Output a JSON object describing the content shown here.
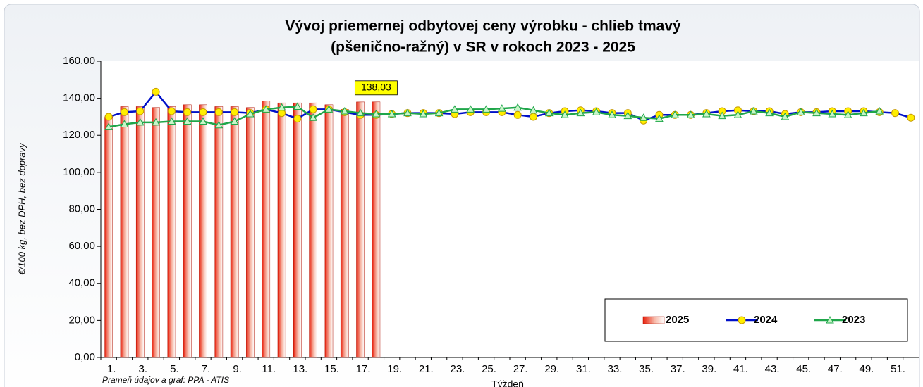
{
  "chart_data": {
    "type": "bar_line",
    "title": [
      "Vývoj priemernej odbytovej ceny výrobku - chlieb tmavý",
      "(pšenično-ražný) v SR v rokoch 2023 - 2025"
    ],
    "y_label": "€/100 kg, bez DPH, bez dopravy",
    "x_label": "Týždeň",
    "source": "Prameň údajov a graf: PPA - ATIS",
    "categories": [
      "1.",
      null,
      "3.",
      null,
      "5.",
      null,
      "7.",
      null,
      "9.",
      null,
      "11.",
      null,
      "13.",
      null,
      "15.",
      null,
      "17.",
      null,
      "19.",
      null,
      "21.",
      null,
      "23.",
      null,
      "25.",
      null,
      "27.",
      null,
      "29.",
      null,
      "31.",
      null,
      "33.",
      null,
      "35.",
      null,
      "37.",
      null,
      "39.",
      null,
      "41.",
      null,
      "43.",
      null,
      "45.",
      null,
      "47.",
      null,
      "49.",
      null,
      "51.",
      null
    ],
    "ylim": [
      0,
      160
    ],
    "yticks": [
      {
        "value": 0,
        "label": "0,00"
      },
      {
        "value": 20,
        "label": "20,00"
      },
      {
        "value": 40,
        "label": "40,00"
      },
      {
        "value": 60,
        "label": "60,00"
      },
      {
        "value": 80,
        "label": "80,00"
      },
      {
        "value": 100,
        "label": "100,00"
      },
      {
        "value": 120,
        "label": "120,00"
      },
      {
        "value": 140,
        "label": "140,00"
      },
      {
        "value": 160,
        "label": "160,00"
      }
    ],
    "grid": false,
    "legend": "lower right",
    "series": [
      {
        "name": "2025",
        "type": "bar",
        "color": "#e8200c",
        "values": [
          130,
          135.5,
          135.5,
          135,
          135.5,
          136.5,
          136.5,
          135.5,
          135.5,
          135,
          138.5,
          137.5,
          137.5,
          137.5,
          136.5,
          134,
          138,
          138.03,
          null,
          null,
          null,
          null,
          null,
          null,
          null,
          null,
          null,
          null,
          null,
          null,
          null,
          null,
          null,
          null,
          null,
          null,
          null,
          null,
          null,
          null,
          null,
          null,
          null,
          null,
          null,
          null,
          null,
          null,
          null,
          null,
          null,
          null
        ],
        "value_labels": [
          null,
          null,
          null,
          null,
          null,
          null,
          null,
          null,
          null,
          null,
          null,
          null,
          null,
          null,
          null,
          null,
          null,
          "138,03",
          null,
          null,
          null,
          null,
          null,
          null,
          null,
          null,
          null,
          null,
          null,
          null,
          null,
          null,
          null,
          null,
          null,
          null,
          null,
          null,
          null,
          null,
          null,
          null,
          null,
          null,
          null,
          null,
          null,
          null,
          null,
          null,
          null,
          null
        ]
      },
      {
        "name": "2024",
        "type": "line",
        "color": "#0010c8",
        "marker": "circle",
        "marker_color": "#ffee00",
        "values": [
          130,
          132.5,
          133,
          143.5,
          133,
          132.5,
          132.5,
          132.5,
          132.5,
          132,
          134,
          132,
          129,
          134,
          134,
          132.5,
          131,
          131,
          131.5,
          132,
          132,
          132,
          131.5,
          132.5,
          132.5,
          132.5,
          131,
          130,
          132,
          133,
          133.5,
          133,
          132,
          132,
          128,
          131,
          131,
          131,
          132,
          133,
          133.5,
          133,
          133,
          131.5,
          132.5,
          132.5,
          133,
          133,
          133,
          132.5,
          132,
          129.5
        ]
      },
      {
        "name": "2023",
        "type": "line",
        "color": "#1fa64a",
        "marker": "triangle",
        "marker_color": "#c8f5c8",
        "values": [
          124.5,
          126,
          127,
          127,
          127.5,
          127.5,
          127.5,
          125.5,
          127.5,
          131.5,
          134,
          135,
          135.5,
          129.5,
          134,
          133,
          132,
          131.5,
          131.5,
          132,
          131.5,
          132,
          134,
          134,
          134,
          134.5,
          135,
          133.5,
          132,
          131,
          132,
          132.5,
          131,
          130.5,
          129.5,
          129,
          131,
          131,
          131.5,
          130.5,
          131,
          133,
          132,
          130,
          132.5,
          132,
          131.5,
          131,
          132,
          133,
          null,
          null
        ]
      }
    ]
  }
}
